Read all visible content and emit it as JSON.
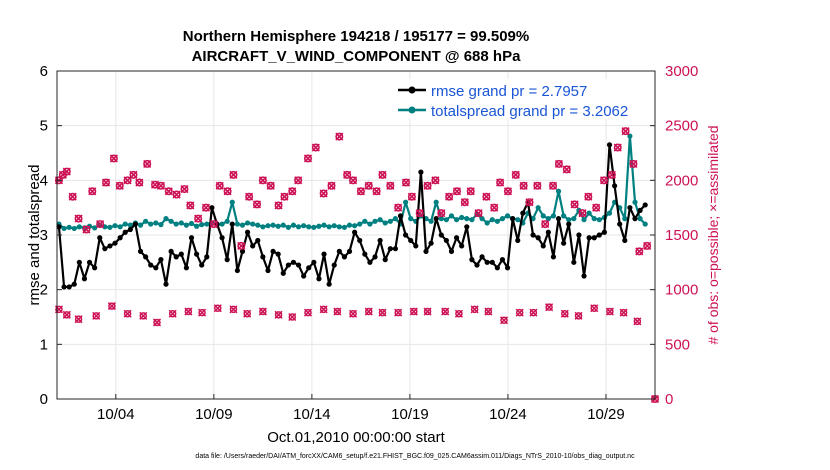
{
  "chart_data": {
    "type": "line",
    "title": "Northern Hemisphere 194218 / 195177 = 99.509%",
    "subtitle": "AIRCRAFT_V_WIND_COMPONENT @ 688 hPa",
    "xlabel": "Oct.01,2010 00:00:00 start",
    "ylabel": "rmse and totalspread",
    "ylabel_right": "# of obs: o=possible; ×=assimilated",
    "xlim": [
      1.0,
      31.5
    ],
    "ylim": [
      0,
      6
    ],
    "ylim_right": [
      0,
      3000
    ],
    "x_ticks": [
      4,
      9,
      14,
      19,
      24,
      29
    ],
    "x_tick_labels": [
      "10/04",
      "10/09",
      "10/14",
      "10/19",
      "10/24",
      "10/29"
    ],
    "y_ticks": [
      0,
      1,
      2,
      3,
      4,
      5,
      6
    ],
    "y_tick_labels": [
      "0",
      "1",
      "2",
      "3",
      "4",
      "5",
      "6"
    ],
    "y_ticks_right": [
      0,
      500,
      1000,
      1500,
      2000,
      2500,
      3000
    ],
    "y_tick_labels_right": [
      "0",
      "500",
      "1000",
      "1500",
      "2000",
      "2500",
      "3000"
    ],
    "grid": true,
    "legend_position": "top-right",
    "series": [
      {
        "name": "rmse grand pr = 2.7957",
        "color": "#000000",
        "axis": "left",
        "values": [
          3.15,
          2.05,
          2.05,
          2.1,
          2.5,
          2.2,
          2.5,
          2.4,
          2.95,
          2.75,
          2.8,
          2.85,
          2.95,
          3.05,
          3.1,
          3.2,
          2.7,
          2.6,
          2.45,
          2.4,
          2.55,
          2.1,
          2.7,
          2.6,
          2.65,
          2.4,
          2.95,
          2.65,
          2.45,
          2.6,
          3.5,
          3.2,
          2.95,
          2.55,
          3.2,
          2.35,
          2.7,
          3.05,
          2.8,
          2.9,
          2.6,
          2.35,
          2.7,
          2.65,
          2.3,
          2.45,
          2.5,
          2.45,
          2.25,
          2.4,
          2.5,
          2.2,
          2.65,
          2.1,
          2.45,
          2.7,
          2.6,
          2.7,
          3.05,
          2.9,
          2.65,
          2.5,
          2.6,
          2.9,
          2.55,
          2.75,
          2.75,
          3.35,
          3.0,
          2.9,
          2.8,
          4.15,
          2.7,
          2.85,
          3.3,
          3.0,
          2.9,
          2.7,
          2.95,
          2.8,
          3.15,
          2.55,
          2.45,
          2.6,
          2.5,
          2.5,
          2.4,
          2.55,
          2.4,
          3.3,
          2.9,
          3.4,
          3.6,
          3.0,
          2.95,
          2.8,
          3.05,
          2.6,
          3.3,
          2.85,
          3.2,
          2.5,
          3.0,
          2.25,
          2.95,
          2.95,
          3.0,
          3.05,
          4.65,
          3.9,
          3.2,
          2.9,
          3.5,
          3.3,
          3.45,
          3.55
        ],
        "x_start": 1.1,
        "x_step": 0.26
      },
      {
        "name": "totalspread grand pr = 3.2062",
        "color": "#008080",
        "axis": "left",
        "values": [
          3.2,
          3.12,
          3.14,
          3.12,
          3.15,
          3.13,
          3.16,
          3.13,
          3.18,
          3.15,
          3.14,
          3.17,
          3.15,
          3.2,
          3.18,
          3.22,
          3.18,
          3.25,
          3.2,
          3.22,
          3.19,
          3.3,
          3.25,
          3.2,
          3.22,
          3.18,
          3.21,
          3.16,
          3.19,
          3.2,
          3.22,
          3.18,
          3.2,
          3.25,
          3.6,
          3.2,
          3.18,
          3.22,
          3.2,
          3.18,
          3.15,
          3.17,
          3.18,
          3.16,
          3.18,
          3.14,
          3.18,
          3.15,
          3.17,
          3.15,
          3.14,
          3.16,
          3.18,
          3.15,
          3.17,
          3.15,
          3.14,
          3.18,
          3.17,
          3.2,
          3.25,
          3.2,
          3.25,
          3.28,
          3.22,
          3.25,
          3.3,
          3.2,
          3.6,
          3.3,
          3.25,
          3.35,
          3.3,
          3.25,
          3.6,
          3.3,
          3.28,
          3.35,
          3.28,
          3.32,
          3.3,
          3.28,
          3.38,
          3.3,
          3.22,
          3.28,
          3.25,
          3.3,
          3.35,
          3.3,
          3.28,
          3.22,
          3.4,
          3.3,
          3.5,
          3.35,
          3.3,
          3.35,
          3.8,
          3.35,
          3.28,
          3.3,
          3.45,
          3.28,
          3.4,
          3.3,
          3.28,
          3.32,
          3.4,
          3.6,
          3.5,
          3.3,
          4.81,
          3.6,
          3.3,
          3.2
        ],
        "x_start": 1.1,
        "x_step": 0.26
      }
    ],
    "obs_possible": {
      "name": "possible",
      "marker": "o",
      "color": "#cc1155",
      "axis": "right",
      "x": [
        1.1,
        1.3,
        1.5,
        1.8,
        2.1,
        2.5,
        2.8,
        3.2,
        3.5,
        3.9,
        4.2,
        4.6,
        4.9,
        5.2,
        5.6,
        6.0,
        6.3,
        6.7,
        7.1,
        7.5,
        7.8,
        8.2,
        8.6,
        9.0,
        9.3,
        9.7,
        10.0,
        10.4,
        10.8,
        11.2,
        11.5,
        11.9,
        12.3,
        12.6,
        13.0,
        13.3,
        13.8,
        14.2,
        14.6,
        15.0,
        15.4,
        15.8,
        16.1,
        16.5,
        16.9,
        17.3,
        17.6,
        18.0,
        18.4,
        18.8,
        19.1,
        19.5,
        19.9,
        20.3,
        20.6,
        21.0,
        21.4,
        21.8,
        22.1,
        22.5,
        22.9,
        23.3,
        23.6,
        24.0,
        24.4,
        24.8,
        25.1,
        25.5,
        25.9,
        26.3,
        26.6,
        27.0,
        27.4,
        27.8,
        28.1,
        28.5,
        28.9,
        29.3,
        29.6,
        30.0,
        30.4,
        30.7,
        31.1
      ],
      "y": [
        2000,
        2050,
        2080,
        1850,
        1650,
        1550,
        1900,
        1600,
        1980,
        2200,
        1950,
        2000,
        2050,
        1980,
        2150,
        1960,
        1950,
        1900,
        1870,
        1920,
        1770,
        1650,
        1750,
        1600,
        1950,
        1900,
        2050,
        1400,
        1850,
        1780,
        2000,
        1950,
        1770,
        1850,
        1900,
        2000,
        2200,
        2300,
        1880,
        1950,
        2400,
        2050,
        2000,
        1900,
        1950,
        1900,
        2050,
        1950,
        1750,
        1980,
        1850,
        1700,
        1950,
        2000,
        1700,
        1850,
        1900,
        1800,
        1900,
        1700,
        1850,
        1750,
        1980,
        1900,
        2050,
        1950,
        1800,
        1950,
        1600,
        1950,
        2150,
        2100,
        1780,
        1700,
        1850,
        1750,
        2000,
        2050,
        2300,
        2450,
        2150,
        1350,
        1400
      ],
      "tail_points": [
        {
          "x": 31.5,
          "y": 0
        }
      ]
    },
    "obs_assimilated": {
      "name": "assimilated",
      "marker": "×",
      "color": "#cc1155",
      "axis": "right",
      "x": [
        1.1,
        1.5,
        2.1,
        3.0,
        3.8,
        4.6,
        5.4,
        6.1,
        6.9,
        7.7,
        8.4,
        9.2,
        10.0,
        10.7,
        11.5,
        12.3,
        13.0,
        13.8,
        14.6,
        15.3,
        16.1,
        16.9,
        17.6,
        18.4,
        19.2,
        19.9,
        20.8,
        21.5,
        22.3,
        23.0,
        23.8,
        24.6,
        25.3,
        26.1,
        26.9,
        27.6,
        28.4,
        29.2,
        29.9,
        30.6
      ],
      "y": [
        820,
        770,
        730,
        760,
        850,
        780,
        760,
        700,
        780,
        800,
        790,
        830,
        820,
        780,
        800,
        770,
        750,
        790,
        820,
        800,
        780,
        800,
        790,
        790,
        800,
        800,
        800,
        780,
        820,
        800,
        720,
        790,
        790,
        840,
        780,
        760,
        830,
        800,
        790,
        710
      ]
    }
  },
  "footnote": "data file: /Users/raeder/DAI/ATM_forcXX/CAM6_setup/f.e21.FHIST_BGC.f09_025.CAM6assim.011/Diags_NTrS_2010-10/obs_diag_output.nc"
}
